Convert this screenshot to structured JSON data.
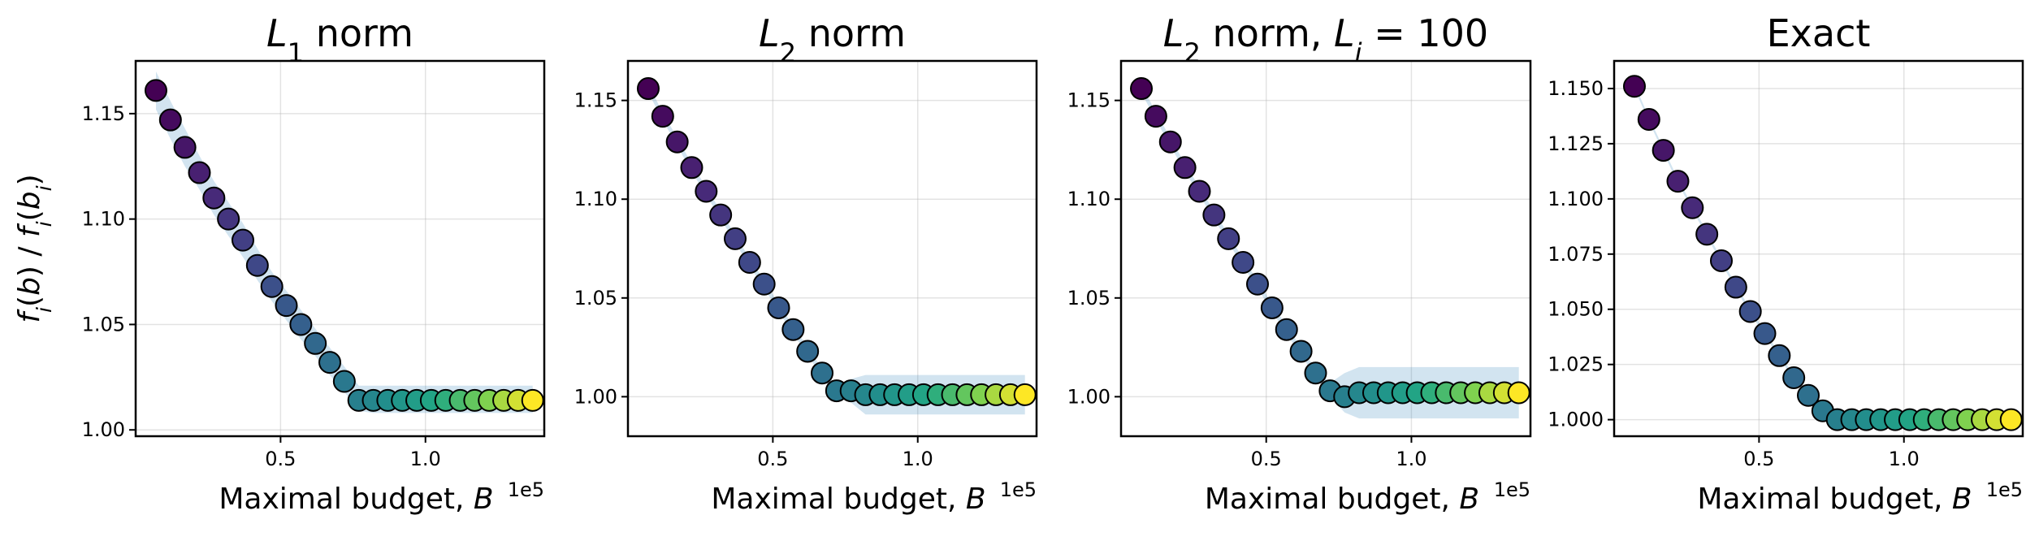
{
  "chart_data": [
    {
      "type": "scatter",
      "title": "$L_1$ norm",
      "xlabel": "Maximal budget, $B$",
      "ylabel": "$f_i(b)\\ /\\ f_i(b_i)$",
      "x_offset_label": "1e5",
      "xlim": [
        0.0,
        1.41
      ],
      "ylim": [
        0.997,
        1.175
      ],
      "xticks": [
        0.5,
        1.0
      ],
      "xtick_labels": [
        "0.5",
        "1.0"
      ],
      "yticks": [
        1.0,
        1.05,
        1.1,
        1.15
      ],
      "ytick_labels": [
        "1.00",
        "1.05",
        "1.10",
        "1.15"
      ],
      "grid": true,
      "colormap": "viridis",
      "x": [
        0.07,
        0.12,
        0.17,
        0.22,
        0.27,
        0.32,
        0.37,
        0.42,
        0.47,
        0.52,
        0.57,
        0.62,
        0.67,
        0.72,
        0.77,
        0.82,
        0.87,
        0.92,
        0.97,
        1.02,
        1.07,
        1.12,
        1.17,
        1.22,
        1.27,
        1.32,
        1.37
      ],
      "y": [
        1.161,
        1.147,
        1.134,
        1.122,
        1.11,
        1.1,
        1.09,
        1.078,
        1.068,
        1.059,
        1.05,
        1.041,
        1.032,
        1.023,
        1.014,
        1.014,
        1.014,
        1.014,
        1.014,
        1.014,
        1.014,
        1.014,
        1.014,
        1.014,
        1.014,
        1.014,
        1.014
      ],
      "band_lower": [
        1.152,
        1.138,
        1.125,
        1.114,
        1.102,
        1.092,
        1.082,
        1.071,
        1.061,
        1.052,
        1.043,
        1.035,
        1.026,
        1.018,
        1.009,
        1.008,
        1.008,
        1.008,
        1.008,
        1.008,
        1.008,
        1.008,
        1.008,
        1.008,
        1.008,
        1.008,
        1.008
      ],
      "band_upper": [
        1.17,
        1.156,
        1.143,
        1.13,
        1.118,
        1.108,
        1.098,
        1.086,
        1.075,
        1.066,
        1.057,
        1.048,
        1.039,
        1.03,
        1.021,
        1.021,
        1.021,
        1.021,
        1.021,
        1.021,
        1.021,
        1.021,
        1.021,
        1.021,
        1.021,
        1.021,
        1.021
      ]
    },
    {
      "type": "scatter",
      "title": "$L_2$ norm",
      "xlabel": "Maximal budget, $B$",
      "ylabel": "",
      "x_offset_label": "1e5",
      "xlim": [
        0.0,
        1.41
      ],
      "ylim": [
        0.98,
        1.17
      ],
      "xticks": [
        0.5,
        1.0
      ],
      "xtick_labels": [
        "0.5",
        "1.0"
      ],
      "yticks": [
        1.0,
        1.05,
        1.1,
        1.15
      ],
      "ytick_labels": [
        "1.00",
        "1.05",
        "1.10",
        "1.15"
      ],
      "grid": true,
      "colormap": "viridis",
      "x": [
        0.07,
        0.12,
        0.17,
        0.22,
        0.27,
        0.32,
        0.37,
        0.42,
        0.47,
        0.52,
        0.57,
        0.62,
        0.67,
        0.72,
        0.77,
        0.82,
        0.87,
        0.92,
        0.97,
        1.02,
        1.07,
        1.12,
        1.17,
        1.22,
        1.27,
        1.32,
        1.37
      ],
      "y": [
        1.156,
        1.142,
        1.129,
        1.116,
        1.104,
        1.092,
        1.08,
        1.068,
        1.057,
        1.045,
        1.034,
        1.023,
        1.012,
        1.003,
        1.003,
        1.001,
        1.001,
        1.001,
        1.001,
        1.001,
        1.001,
        1.001,
        1.001,
        1.001,
        1.001,
        1.001,
        1.001
      ],
      "band_lower": [
        1.154,
        1.14,
        1.127,
        1.114,
        1.102,
        1.09,
        1.078,
        1.066,
        1.055,
        1.043,
        1.032,
        1.021,
        1.01,
        1.0,
        0.997,
        0.991,
        0.991,
        0.991,
        0.991,
        0.991,
        0.991,
        0.991,
        0.991,
        0.991,
        0.991,
        0.991,
        0.991
      ],
      "band_upper": [
        1.158,
        1.144,
        1.131,
        1.118,
        1.106,
        1.094,
        1.082,
        1.07,
        1.059,
        1.047,
        1.036,
        1.025,
        1.014,
        1.006,
        1.009,
        1.011,
        1.011,
        1.011,
        1.011,
        1.011,
        1.011,
        1.011,
        1.011,
        1.011,
        1.011,
        1.011,
        1.011
      ]
    },
    {
      "type": "scatter",
      "title": "$L_2$ norm, $L_i = 100$",
      "xlabel": "Maximal budget, $B$",
      "ylabel": "",
      "x_offset_label": "1e5",
      "xlim": [
        0.0,
        1.41
      ],
      "ylim": [
        0.98,
        1.17
      ],
      "xticks": [
        0.5,
        1.0
      ],
      "xtick_labels": [
        "0.5",
        "1.0"
      ],
      "yticks": [
        1.0,
        1.05,
        1.1,
        1.15
      ],
      "ytick_labels": [
        "1.00",
        "1.05",
        "1.10",
        "1.15"
      ],
      "grid": true,
      "colormap": "viridis",
      "x": [
        0.07,
        0.12,
        0.17,
        0.22,
        0.27,
        0.32,
        0.37,
        0.42,
        0.47,
        0.52,
        0.57,
        0.62,
        0.67,
        0.72,
        0.77,
        0.82,
        0.87,
        0.92,
        0.97,
        1.02,
        1.07,
        1.12,
        1.17,
        1.22,
        1.27,
        1.32,
        1.37
      ],
      "y": [
        1.156,
        1.142,
        1.129,
        1.116,
        1.104,
        1.092,
        1.08,
        1.068,
        1.057,
        1.045,
        1.034,
        1.023,
        1.012,
        1.003,
        1.0,
        1.002,
        1.002,
        1.002,
        1.002,
        1.002,
        1.002,
        1.002,
        1.002,
        1.002,
        1.002,
        1.002,
        1.002
      ],
      "band_lower": [
        1.154,
        1.14,
        1.127,
        1.114,
        1.102,
        1.09,
        1.078,
        1.066,
        1.055,
        1.043,
        1.032,
        1.021,
        1.01,
        1.0,
        0.992,
        0.989,
        0.989,
        0.989,
        0.989,
        0.989,
        0.989,
        0.989,
        0.989,
        0.989,
        0.989,
        0.989,
        0.989
      ],
      "band_upper": [
        1.158,
        1.144,
        1.131,
        1.118,
        1.106,
        1.094,
        1.082,
        1.07,
        1.059,
        1.047,
        1.036,
        1.025,
        1.014,
        1.007,
        1.012,
        1.015,
        1.015,
        1.015,
        1.015,
        1.015,
        1.015,
        1.015,
        1.015,
        1.015,
        1.015,
        1.015,
        1.015
      ]
    },
    {
      "type": "scatter",
      "title": "Exact",
      "xlabel": "Maximal budget, $B$",
      "ylabel": "",
      "x_offset_label": "1e5",
      "xlim": [
        0.0,
        1.41
      ],
      "ylim": [
        0.9925,
        1.1625
      ],
      "xticks": [
        0.5,
        1.0
      ],
      "xtick_labels": [
        "0.5",
        "1.0"
      ],
      "yticks": [
        1.0,
        1.025,
        1.05,
        1.075,
        1.1,
        1.125,
        1.15
      ],
      "ytick_labels": [
        "1.000",
        "1.025",
        "1.050",
        "1.075",
        "1.100",
        "1.125",
        "1.150"
      ],
      "grid": true,
      "colormap": "viridis",
      "x": [
        0.07,
        0.12,
        0.17,
        0.22,
        0.27,
        0.32,
        0.37,
        0.42,
        0.47,
        0.52,
        0.57,
        0.62,
        0.67,
        0.72,
        0.77,
        0.82,
        0.87,
        0.92,
        0.97,
        1.02,
        1.07,
        1.12,
        1.17,
        1.22,
        1.27,
        1.32,
        1.37
      ],
      "y": [
        1.151,
        1.136,
        1.122,
        1.108,
        1.096,
        1.084,
        1.072,
        1.06,
        1.049,
        1.039,
        1.029,
        1.019,
        1.011,
        1.004,
        1.0,
        1.0,
        1.0,
        1.0,
        1.0,
        1.0,
        1.0,
        1.0,
        1.0,
        1.0,
        1.0,
        1.0,
        1.0
      ],
      "band_lower": [
        1.15,
        1.135,
        1.121,
        1.107,
        1.095,
        1.083,
        1.071,
        1.059,
        1.048,
        1.038,
        1.028,
        1.018,
        1.01,
        1.003,
        0.999,
        0.999,
        0.999,
        0.999,
        0.999,
        0.999,
        0.999,
        0.999,
        0.999,
        0.999,
        0.999,
        0.999,
        0.999
      ],
      "band_upper": [
        1.152,
        1.137,
        1.123,
        1.109,
        1.097,
        1.085,
        1.073,
        1.061,
        1.05,
        1.04,
        1.03,
        1.02,
        1.012,
        1.005,
        1.001,
        1.001,
        1.001,
        1.001,
        1.001,
        1.001,
        1.001,
        1.001,
        1.001,
        1.001,
        1.001,
        1.001,
        1.001
      ]
    }
  ]
}
